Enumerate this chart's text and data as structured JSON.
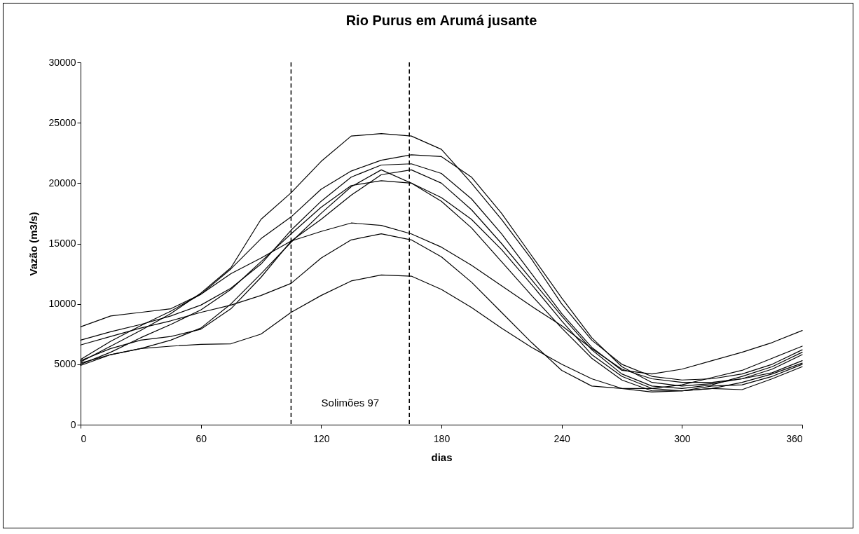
{
  "chart_data": {
    "type": "line",
    "title": "Rio Purus em Arumá jusante",
    "xlabel": "dias",
    "ylabel": "Vazão (m3/s)",
    "x": [
      0,
      15,
      30,
      45,
      60,
      75,
      90,
      105,
      120,
      135,
      150,
      165,
      180,
      195,
      210,
      225,
      240,
      255,
      270,
      285,
      300,
      315,
      330,
      345,
      360
    ],
    "series": [
      {
        "color": "#000000",
        "values": [
          5200,
          6500,
          7800,
          9200,
          10900,
          13000,
          17000,
          19200,
          21800,
          23900,
          24100,
          23900,
          22800,
          20000,
          17000,
          13700,
          10000,
          7000,
          5000,
          4000,
          3700,
          3800,
          4200,
          5000,
          6200
        ]
      },
      {
        "color": "#000000",
        "values": [
          8100,
          9000,
          9300,
          9600,
          10800,
          12900,
          15400,
          17200,
          19500,
          21000,
          21900,
          22350,
          22200,
          20500,
          17500,
          14000,
          10500,
          7200,
          4800,
          3500,
          3200,
          3400,
          3800,
          4600,
          5800
        ]
      },
      {
        "color": "#000000",
        "values": [
          7000,
          7700,
          8300,
          9000,
          9900,
          11300,
          13300,
          16100,
          18500,
          20500,
          21500,
          21600,
          20800,
          18700,
          15800,
          12500,
          9200,
          6400,
          4500,
          4200,
          4600,
          5300,
          6000,
          6800,
          7800
        ]
      },
      {
        "color": "#000000",
        "values": [
          5100,
          5800,
          6300,
          7000,
          8000,
          10000,
          12500,
          15100,
          17500,
          19700,
          21100,
          20000,
          18500,
          16300,
          13500,
          10700,
          8000,
          5500,
          3700,
          2800,
          2800,
          3000,
          3500,
          4200,
          5100
        ]
      },
      {
        "color": "#000000",
        "values": [
          5300,
          6300,
          7000,
          7300,
          7900,
          9600,
          12200,
          15200,
          17000,
          19000,
          20700,
          21100,
          20000,
          17800,
          15000,
          12000,
          9000,
          6200,
          4200,
          3200,
          3000,
          3300,
          4000,
          4800,
          6000
        ]
      },
      {
        "color": "#000000",
        "values": [
          5000,
          6000,
          7200,
          8300,
          9500,
          11200,
          13500,
          15800,
          18000,
          19800,
          20200,
          20000,
          18800,
          17000,
          14500,
          11600,
          8600,
          5800,
          4000,
          3000,
          2800,
          3200,
          3300,
          4000,
          5000
        ]
      },
      {
        "color": "#000000",
        "values": [
          5400,
          6900,
          8200,
          9400,
          10800,
          12500,
          13800,
          15200,
          16000,
          16700,
          16500,
          15800,
          14700,
          13200,
          11500,
          9800,
          8200,
          6300,
          4600,
          3800,
          3500,
          3500,
          3800,
          4300,
          5300
        ]
      },
      {
        "color": "#000000",
        "values": [
          6600,
          7300,
          8000,
          8600,
          9300,
          9900,
          10700,
          11700,
          13800,
          15300,
          15800,
          15300,
          13900,
          11800,
          9300,
          6800,
          4500,
          3200,
          3000,
          3000,
          3300,
          3900,
          4500,
          5500,
          6500
        ]
      },
      {
        "color": "#000000",
        "values": [
          4900,
          5800,
          6300,
          6500,
          6650,
          6700,
          7500,
          9300,
          10700,
          11900,
          12400,
          12300,
          11200,
          9700,
          8000,
          6400,
          5000,
          3800,
          3000,
          2700,
          2800,
          3000,
          2900,
          3800,
          4800
        ]
      }
    ],
    "xlim": [
      0,
      360
    ],
    "xticks": [
      0,
      60,
      120,
      180,
      240,
      300,
      360
    ],
    "ylim": [
      0,
      30000
    ],
    "yticks": [
      0,
      5000,
      10000,
      15000,
      20000,
      25000,
      30000
    ],
    "ref_lines": [
      {
        "axis": "x",
        "value": 105,
        "line_style": "dashed"
      },
      {
        "axis": "x",
        "value": 164,
        "line_style": "dashed"
      }
    ],
    "annotations": [
      "Solimões 97"
    ],
    "grid": false,
    "legend": false
  }
}
